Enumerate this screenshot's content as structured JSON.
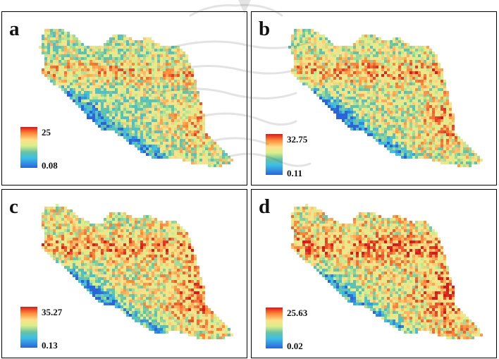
{
  "figure": {
    "panels": [
      {
        "id": "a",
        "label": "a",
        "legend": {
          "max": "25",
          "min": "0.08"
        }
      },
      {
        "id": "b",
        "label": "b",
        "legend": {
          "max": "32.75",
          "min": "0.11"
        }
      },
      {
        "id": "c",
        "label": "c",
        "legend": {
          "max": "35.27",
          "min": "0.13"
        }
      },
      {
        "id": "d",
        "label": "d",
        "legend": {
          "max": "25.63",
          "min": "0.02"
        }
      }
    ]
  },
  "colormap": [
    "#d7191c",
    "#fd8d3c",
    "#fee08b",
    "#d9ef8b",
    "#66c2a5",
    "#3dbfe6",
    "#2b63d9"
  ],
  "watermark": {
    "text": "پرتال جامع علوم انسانی"
  }
}
